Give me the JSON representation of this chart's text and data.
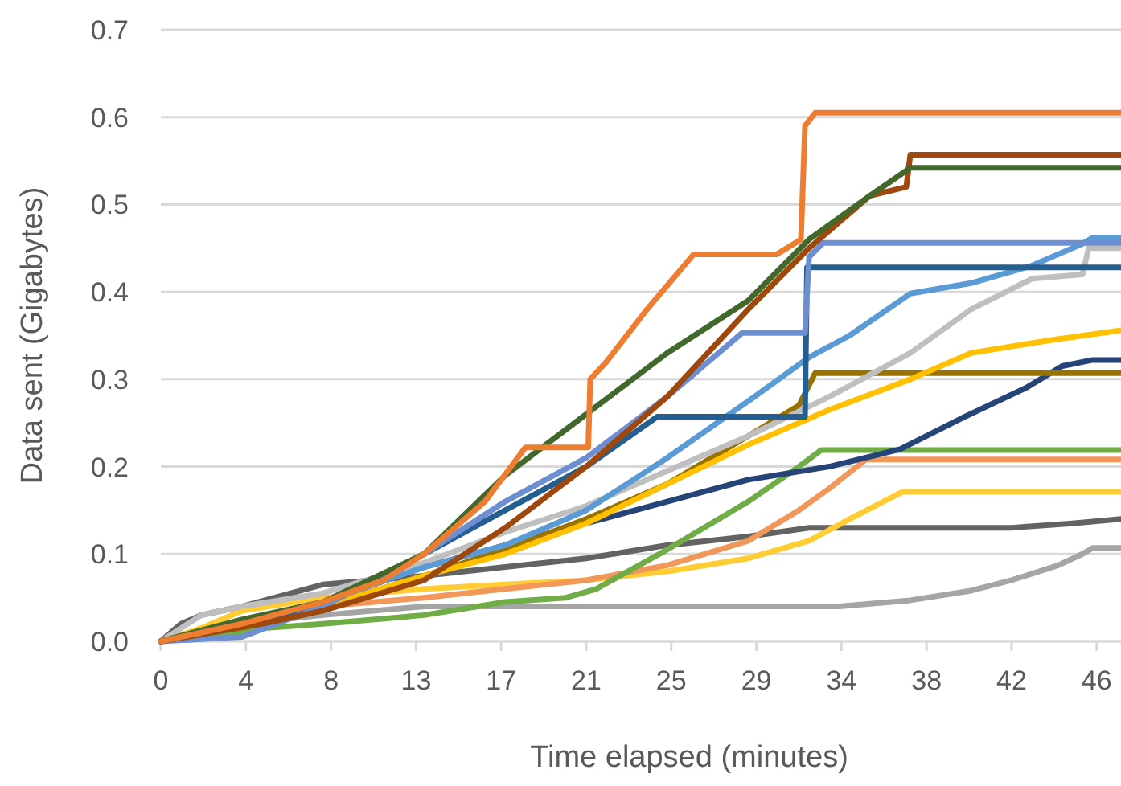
{
  "chart_data": {
    "type": "line",
    "xlabel": "Time elapsed (minutes)",
    "ylabel": "Data sent (Gigabytes)",
    "xlim": [
      0,
      47.4
    ],
    "ylim": [
      0,
      0.7
    ],
    "xticks": [
      0,
      {
        "value": 4.2,
        "label": "4"
      },
      {
        "value": 8.4,
        "label": "8"
      },
      {
        "value": 12.6,
        "label": "13"
      },
      {
        "value": 16.8,
        "label": "17"
      },
      21,
      {
        "value": 25.2,
        "label": "25"
      },
      {
        "value": 29.4,
        "label": "29"
      },
      {
        "value": 33.6,
        "label": "34"
      },
      {
        "value": 37.8,
        "label": "38"
      },
      42,
      {
        "value": 46.2,
        "label": "46"
      }
    ],
    "yticks": [
      {
        "value": 0,
        "label": "0.0"
      },
      0.1,
      0.2,
      0.3,
      0.4,
      0.5,
      0.6,
      0.7
    ],
    "grid": "y",
    "line_style": "solid",
    "series": [
      {
        "color": "#a5a5a5",
        "x": [
          0,
          4,
          8,
          13,
          17,
          33.5,
          37,
          40,
          42,
          44.3,
          45.5,
          46,
          47.4
        ],
        "values": [
          0,
          0.02,
          0.03,
          0.04,
          0.04,
          0.04,
          0.047,
          0.058,
          0.07,
          0.087,
          0.1,
          0.107,
          0.107
        ]
      },
      {
        "color": "#636363",
        "x": [
          0,
          1,
          2,
          4,
          8,
          13,
          17,
          21,
          25,
          29,
          32,
          42,
          45,
          47.4
        ],
        "values": [
          0,
          0.02,
          0.03,
          0.04,
          0.065,
          0.075,
          0.085,
          0.095,
          0.11,
          0.12,
          0.13,
          0.13,
          0.135,
          0.14
        ]
      },
      {
        "color": "#ffcd33",
        "x": [
          0,
          2,
          4,
          8,
          13,
          17,
          21,
          25,
          29,
          32,
          34,
          36.6,
          47.4
        ],
        "values": [
          0,
          0.015,
          0.035,
          0.05,
          0.06,
          0.065,
          0.07,
          0.08,
          0.095,
          0.115,
          0.14,
          0.171,
          0.171
        ]
      },
      {
        "color": "#f1975a",
        "x": [
          0,
          4,
          8,
          13,
          17,
          21,
          25,
          29,
          31.5,
          33,
          34.8,
          47.4
        ],
        "values": [
          0,
          0.02,
          0.04,
          0.05,
          0.06,
          0.07,
          0.087,
          0.115,
          0.15,
          0.175,
          0.208,
          0.208
        ]
      },
      {
        "color": "#70ad47",
        "x": [
          0,
          4,
          5,
          8,
          13,
          17,
          20,
          21.5,
          25,
          29,
          31.5,
          32.6,
          47.4
        ],
        "values": [
          0,
          0.01,
          0.015,
          0.02,
          0.03,
          0.045,
          0.05,
          0.06,
          0.105,
          0.16,
          0.2,
          0.219,
          0.219
        ]
      },
      {
        "color": "#264478",
        "x": [
          0,
          4,
          8,
          13,
          17,
          21,
          25,
          29,
          33,
          36.5,
          39.5,
          42.7,
          44.5,
          46,
          47.4
        ],
        "values": [
          0,
          0.02,
          0.045,
          0.085,
          0.11,
          0.135,
          0.16,
          0.185,
          0.2,
          0.22,
          0.255,
          0.29,
          0.315,
          0.322,
          0.322
        ]
      },
      {
        "color": "#997300",
        "x": [
          0,
          4,
          8,
          13,
          17,
          21,
          25,
          29,
          31.5,
          32.3,
          47.4
        ],
        "values": [
          0,
          0.02,
          0.04,
          0.075,
          0.105,
          0.14,
          0.18,
          0.235,
          0.27,
          0.307,
          0.307
        ]
      },
      {
        "color": "#ffc000",
        "x": [
          0,
          4,
          8,
          13,
          17,
          21,
          25,
          29,
          33,
          37,
          40,
          44,
          47.4
        ],
        "values": [
          0,
          0.02,
          0.04,
          0.075,
          0.1,
          0.135,
          0.18,
          0.225,
          0.265,
          0.3,
          0.33,
          0.345,
          0.356
        ]
      },
      {
        "color": "#bfbfbf",
        "x": [
          0,
          2,
          4,
          8,
          13,
          17,
          21,
          25,
          29,
          33,
          37,
          40,
          43,
          45.5,
          45.8,
          47.4
        ],
        "values": [
          0,
          0.03,
          0.04,
          0.055,
          0.09,
          0.125,
          0.155,
          0.195,
          0.235,
          0.28,
          0.33,
          0.38,
          0.415,
          0.42,
          0.45,
          0.45
        ]
      },
      {
        "color": "#5b9bd5",
        "x": [
          0,
          4,
          8,
          13,
          17,
          21,
          25,
          29,
          32,
          34,
          37,
          40,
          43,
          45.5,
          46,
          47.4
        ],
        "values": [
          0,
          0.02,
          0.045,
          0.085,
          0.11,
          0.15,
          0.21,
          0.275,
          0.325,
          0.35,
          0.398,
          0.41,
          0.43,
          0.455,
          0.462,
          0.462
        ]
      },
      {
        "color": "#255e91",
        "x": [
          0,
          4,
          8,
          13,
          17,
          21,
          24.5,
          31.8,
          31.9,
          47.4
        ],
        "values": [
          0,
          0.02,
          0.04,
          0.1,
          0.15,
          0.2,
          0.257,
          0.257,
          0.428,
          0.428
        ]
      },
      {
        "color": "#6d8fd1",
        "x": [
          0,
          4,
          8,
          13,
          17,
          21,
          25,
          28.7,
          31.8,
          32,
          32.7,
          47.4
        ],
        "values": [
          0,
          0.005,
          0.04,
          0.1,
          0.16,
          0.21,
          0.28,
          0.353,
          0.353,
          0.44,
          0.456,
          0.456
        ]
      },
      {
        "color": "#9e480e",
        "x": [
          0,
          5,
          8,
          13,
          17,
          21,
          25,
          29,
          32,
          35,
          36.8,
          37,
          47.4
        ],
        "values": [
          0,
          0.02,
          0.035,
          0.07,
          0.13,
          0.2,
          0.28,
          0.38,
          0.45,
          0.51,
          0.52,
          0.557,
          0.557
        ]
      },
      {
        "color": "#43682b",
        "x": [
          0,
          4,
          8,
          13,
          17,
          21,
          25,
          29,
          32,
          35,
          37,
          47.4
        ],
        "values": [
          0,
          0.025,
          0.045,
          0.1,
          0.19,
          0.26,
          0.33,
          0.39,
          0.46,
          0.51,
          0.542,
          0.542
        ]
      },
      {
        "color": "#ed7d31",
        "x": [
          0,
          4,
          8,
          11,
          13,
          16,
          18,
          21.1,
          21.2,
          22,
          24,
          26.3,
          30.4,
          31.6,
          31.8,
          32.3,
          47.4
        ],
        "values": [
          0,
          0.02,
          0.045,
          0.07,
          0.1,
          0.16,
          0.222,
          0.222,
          0.3,
          0.32,
          0.38,
          0.443,
          0.443,
          0.46,
          0.59,
          0.605,
          0.605
        ]
      }
    ]
  }
}
